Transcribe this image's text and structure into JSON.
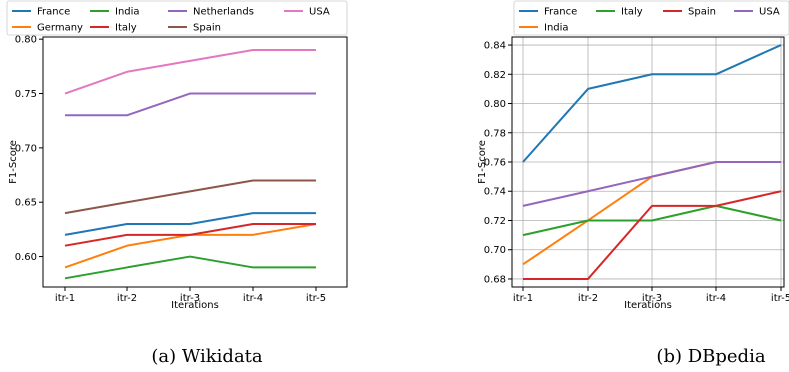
{
  "chart_data": [
    {
      "type": "line",
      "caption": "(a) Wikidata",
      "xlabel": "Iterations",
      "ylabel": "F1-Score",
      "categories": [
        "itr-1",
        "itr-2",
        "itr-3",
        "itr-4",
        "itr-5"
      ],
      "ylim": [
        0.572,
        0.802
      ],
      "yticks": [
        0.6,
        0.65,
        0.7,
        0.75,
        0.8
      ],
      "yticklabels": [
        "0.60",
        "0.65",
        "0.70",
        "0.75",
        "0.80"
      ],
      "grid": false,
      "legend_position": "top",
      "series": [
        {
          "name": "France",
          "color": "#1f77b4",
          "values": [
            0.62,
            0.63,
            0.63,
            0.64,
            0.64
          ]
        },
        {
          "name": "Germany",
          "color": "#ff7f0e",
          "values": [
            0.59,
            0.61,
            0.62,
            0.62,
            0.63
          ]
        },
        {
          "name": "India",
          "color": "#2ca02c",
          "values": [
            0.58,
            0.59,
            0.6,
            0.59,
            0.59
          ]
        },
        {
          "name": "Italy",
          "color": "#d62728",
          "values": [
            0.61,
            0.62,
            0.62,
            0.63,
            0.63
          ]
        },
        {
          "name": "Netherlands",
          "color": "#9467bd",
          "values": [
            0.73,
            0.73,
            0.75,
            0.75,
            0.75
          ]
        },
        {
          "name": "Spain",
          "color": "#8c564b",
          "values": [
            0.64,
            0.65,
            0.66,
            0.67,
            0.67
          ]
        },
        {
          "name": "USA",
          "color": "#e377c2",
          "values": [
            0.75,
            0.77,
            0.78,
            0.79,
            0.79
          ]
        }
      ]
    },
    {
      "type": "line",
      "caption": "(b) DBpedia",
      "xlabel": "Iterations",
      "ylabel": "F1-Score",
      "categories": [
        "itr-1",
        "itr-2",
        "itr-3",
        "itr-4",
        "itr-5"
      ],
      "ylim": [
        0.6745,
        0.8455
      ],
      "yticks": [
        0.68,
        0.7,
        0.72,
        0.74,
        0.76,
        0.78,
        0.8,
        0.82,
        0.84
      ],
      "yticklabels": [
        "0.68",
        "0.70",
        "0.72",
        "0.74",
        "0.76",
        "0.78",
        "0.80",
        "0.82",
        "0.84"
      ],
      "grid": true,
      "legend_position": "top",
      "series": [
        {
          "name": "France",
          "color": "#1f77b4",
          "values": [
            0.76,
            0.81,
            0.82,
            0.82,
            0.84
          ]
        },
        {
          "name": "India",
          "color": "#ff7f0e",
          "values": [
            0.69,
            0.72,
            0.75,
            0.76,
            0.76
          ]
        },
        {
          "name": "Italy",
          "color": "#2ca02c",
          "values": [
            0.71,
            0.72,
            0.72,
            0.73,
            0.72
          ]
        },
        {
          "name": "Spain",
          "color": "#d62728",
          "values": [
            0.68,
            0.68,
            0.73,
            0.73,
            0.74
          ]
        },
        {
          "name": "USA",
          "color": "#9467bd",
          "values": [
            0.73,
            0.74,
            0.75,
            0.76,
            0.76
          ]
        }
      ]
    }
  ]
}
